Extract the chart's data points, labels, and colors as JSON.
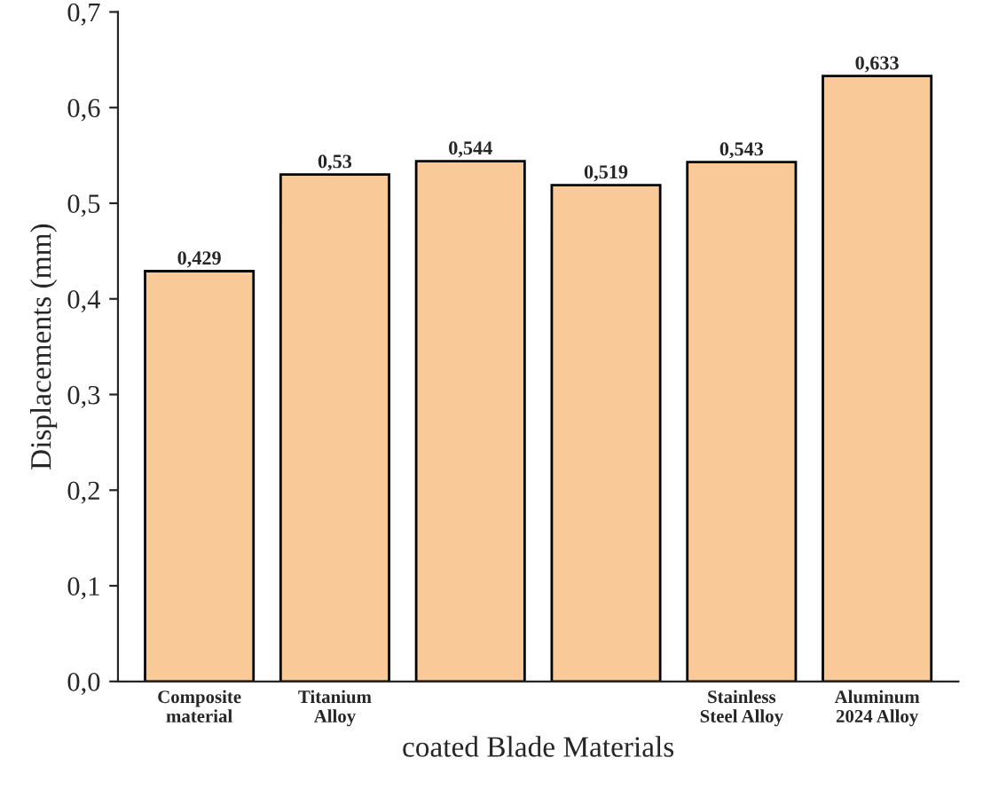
{
  "chart_data": {
    "type": "bar",
    "xlabel": "coated Blade Materials",
    "ylabel": "Displacements (mm)",
    "categories": [
      "Composite\nmaterial",
      "Titanium\nAlloy",
      null,
      null,
      "Stainless\nSteel Alloy",
      "Aluminum\n2024 Alloy"
    ],
    "values": [
      0.429,
      0.53,
      0.544,
      0.519,
      0.543,
      0.633
    ],
    "value_labels": [
      "0,429",
      "0,53",
      "0,544",
      "0,519",
      "0,543",
      "0,633"
    ],
    "color": "#f9c998",
    "ylim": [
      0,
      0.7
    ],
    "yticks": [
      {
        "value": 0.0,
        "label": "0,0"
      },
      {
        "value": 0.1,
        "label": "0,1"
      },
      {
        "value": 0.2,
        "label": "0,2"
      },
      {
        "value": 0.3,
        "label": "0,3"
      },
      {
        "value": 0.4,
        "label": "0,4"
      },
      {
        "value": 0.5,
        "label": "0,5"
      },
      {
        "value": 0.6,
        "label": "0,6"
      },
      {
        "value": 0.7,
        "label": "0,7"
      }
    ],
    "grid": false,
    "legend": false
  }
}
